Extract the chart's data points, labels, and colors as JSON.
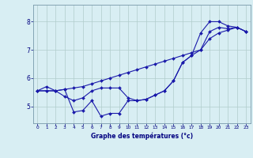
{
  "xlabel": "Graphe des températures (°c)",
  "bg_color": "#d8eef3",
  "line_color": "#1a1aaa",
  "grid_color": "#b0cccc",
  "xlim": [
    -0.5,
    23.5
  ],
  "ylim": [
    4.4,
    8.6
  ],
  "yticks": [
    5,
    6,
    7,
    8
  ],
  "xticks": [
    0,
    1,
    2,
    3,
    4,
    5,
    6,
    7,
    8,
    9,
    10,
    11,
    12,
    13,
    14,
    15,
    16,
    17,
    18,
    19,
    20,
    21,
    22,
    23
  ],
  "line1_x": [
    0,
    1,
    2,
    3,
    4,
    5,
    6,
    7,
    8,
    9,
    10,
    11,
    12,
    13,
    14,
    15,
    16,
    17,
    18,
    19,
    20,
    21,
    22,
    23
  ],
  "line1_y": [
    5.55,
    5.7,
    5.55,
    5.35,
    5.2,
    5.3,
    5.55,
    5.65,
    5.65,
    5.65,
    5.3,
    5.2,
    5.25,
    5.4,
    5.55,
    5.9,
    6.55,
    6.8,
    7.0,
    7.65,
    7.8,
    7.75,
    7.8,
    7.65
  ],
  "line2_x": [
    0,
    1,
    2,
    3,
    4,
    5,
    6,
    7,
    8,
    9,
    10,
    11,
    12,
    13,
    14,
    15,
    16,
    17,
    18,
    19,
    20,
    21,
    22,
    23
  ],
  "line2_y": [
    5.55,
    5.55,
    5.55,
    5.6,
    5.65,
    5.7,
    5.8,
    5.9,
    6.0,
    6.1,
    6.2,
    6.3,
    6.4,
    6.5,
    6.6,
    6.7,
    6.8,
    6.9,
    7.0,
    7.4,
    7.6,
    7.7,
    7.8,
    7.65
  ],
  "line3_x": [
    0,
    1,
    2,
    3,
    4,
    5,
    6,
    7,
    8,
    9,
    10,
    11,
    12,
    13,
    14,
    15,
    16,
    17,
    18,
    19,
    20,
    21,
    22,
    23
  ],
  "line3_y": [
    5.55,
    5.55,
    5.55,
    5.6,
    4.8,
    4.85,
    5.2,
    4.65,
    4.75,
    4.75,
    5.2,
    5.2,
    5.25,
    5.4,
    5.55,
    5.9,
    6.55,
    6.8,
    7.6,
    8.0,
    8.0,
    7.85,
    7.8,
    7.65
  ],
  "ytick_labels": [
    "5",
    "6",
    "7",
    "8"
  ],
  "xtick_labels": [
    "0",
    "1",
    "2",
    "3",
    "4",
    "5",
    "6",
    "7",
    "8",
    "9",
    "10",
    "11",
    "12",
    "13",
    "14",
    "15",
    "16",
    "17",
    "18",
    "19",
    "20",
    "21",
    "22",
    "23"
  ]
}
